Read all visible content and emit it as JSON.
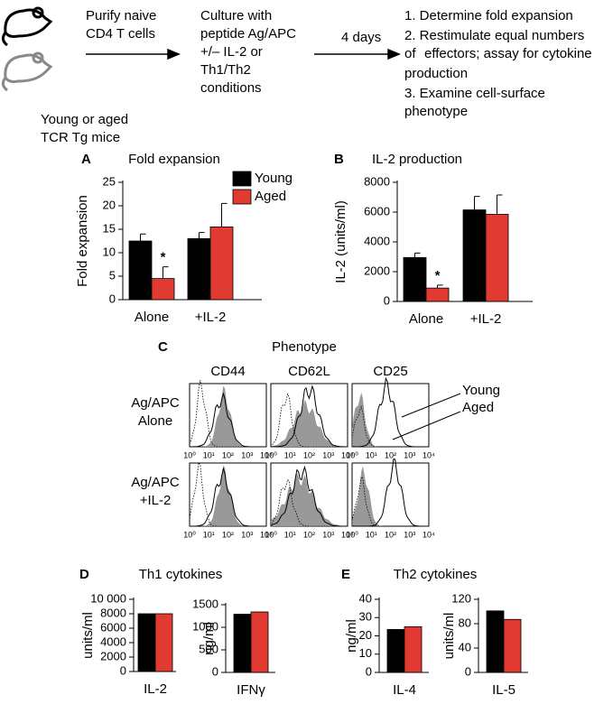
{
  "diagram": {
    "step1": [
      "Purify naive",
      "CD4 T cells"
    ],
    "step2": [
      "Culture with",
      "peptide Ag/APC",
      "+/– IL-2 or",
      "Th1/Th2",
      "conditions"
    ],
    "arrow2": "4 days",
    "step3": [
      "1. Determine fold expansion",
      "2. Restimulate equal numbers",
      "of",
      "effectors; assay for cytokine",
      "production",
      "3. Examine cell-surface",
      "phenotype"
    ],
    "mice": [
      "Young or aged",
      "TCR Tg mice"
    ]
  },
  "chart_data": [
    {
      "type": "bar",
      "panel": "A",
      "title": "Fold expansion",
      "y_label": "Fold expansion",
      "categories": [
        "Alone",
        "+IL-2"
      ],
      "series": [
        {
          "name": "Young",
          "color": "#000000",
          "values": [
            12.5,
            13
          ],
          "errors": [
            1.5,
            1.3
          ]
        },
        {
          "name": "Aged",
          "color": "#e03a33",
          "values": [
            4.5,
            15.5
          ],
          "errors": [
            2.5,
            5
          ]
        }
      ],
      "ylim": [
        0,
        25
      ],
      "yticks": [
        0,
        5,
        10,
        15,
        20,
        25
      ],
      "annotation": "*",
      "legend": "top-right"
    },
    {
      "type": "bar",
      "panel": "B",
      "title": "IL-2 production",
      "y_label": "IL-2 (units/ml)",
      "categories": [
        "Alone",
        "+IL-2"
      ],
      "series": [
        {
          "color": "#000000",
          "values": [
            2950,
            6150
          ],
          "errors": [
            300,
            900
          ]
        },
        {
          "color": "#e03a33",
          "values": [
            900,
            5850
          ],
          "errors": [
            200,
            1300
          ]
        }
      ],
      "ylim": [
        0,
        8000
      ],
      "yticks": [
        0,
        2000,
        4000,
        6000,
        8000
      ],
      "annotation": "*"
    },
    {
      "type": "bar",
      "panel": "D",
      "title": "Th1 cytokines",
      "y_label": "units/ml",
      "categories": [
        "IL-2"
      ],
      "series": [
        {
          "color": "#000000",
          "values": [
            8000
          ]
        },
        {
          "color": "#e03a33",
          "values": [
            8000
          ]
        }
      ],
      "ylim": [
        0,
        10000
      ],
      "yticks": [
        0,
        2000,
        4000,
        6000,
        8000,
        {
          "value": 10000,
          "label": "10 000"
        }
      ]
    },
    {
      "type": "bar",
      "y_label": "ng/ml",
      "categories": [
        "IFNγ"
      ],
      "series": [
        {
          "color": "#000000",
          "values": [
            1290
          ]
        },
        {
          "color": "#e03a33",
          "values": [
            1340
          ]
        }
      ],
      "ylim": [
        0,
        1500
      ],
      "yticks": [
        0,
        500,
        1000,
        1500
      ]
    },
    {
      "type": "bar",
      "panel": "E",
      "title": "Th2 cytokines",
      "y_label": "ng/ml",
      "categories": [
        "IL-4"
      ],
      "series": [
        {
          "color": "#000000",
          "values": [
            23.5
          ]
        },
        {
          "color": "#e03a33",
          "values": [
            25
          ]
        }
      ],
      "ylim": [
        0,
        40
      ],
      "yticks": [
        0,
        10,
        20,
        30,
        40
      ]
    },
    {
      "type": "bar",
      "y_label": "units/ml",
      "categories": [
        "IL-5"
      ],
      "series": [
        {
          "color": "#000000",
          "values": [
            101
          ]
        },
        {
          "color": "#e03a33",
          "values": [
            87
          ]
        }
      ],
      "ylim": [
        0,
        120
      ],
      "yticks": [
        0,
        40,
        80,
        120
      ]
    }
  ],
  "phenotype": {
    "panel": "C",
    "title": "Phenotype",
    "columns": [
      "CD44",
      "CD62L",
      "CD25"
    ],
    "rows": [
      [
        "Ag/APC",
        "Alone"
      ],
      [
        "Ag/APC",
        "+IL-2"
      ]
    ],
    "xticks": [
      "10⁰",
      "10¹",
      "10²",
      "10³",
      "10⁴"
    ],
    "legend": [
      "Young",
      "Aged"
    ]
  }
}
